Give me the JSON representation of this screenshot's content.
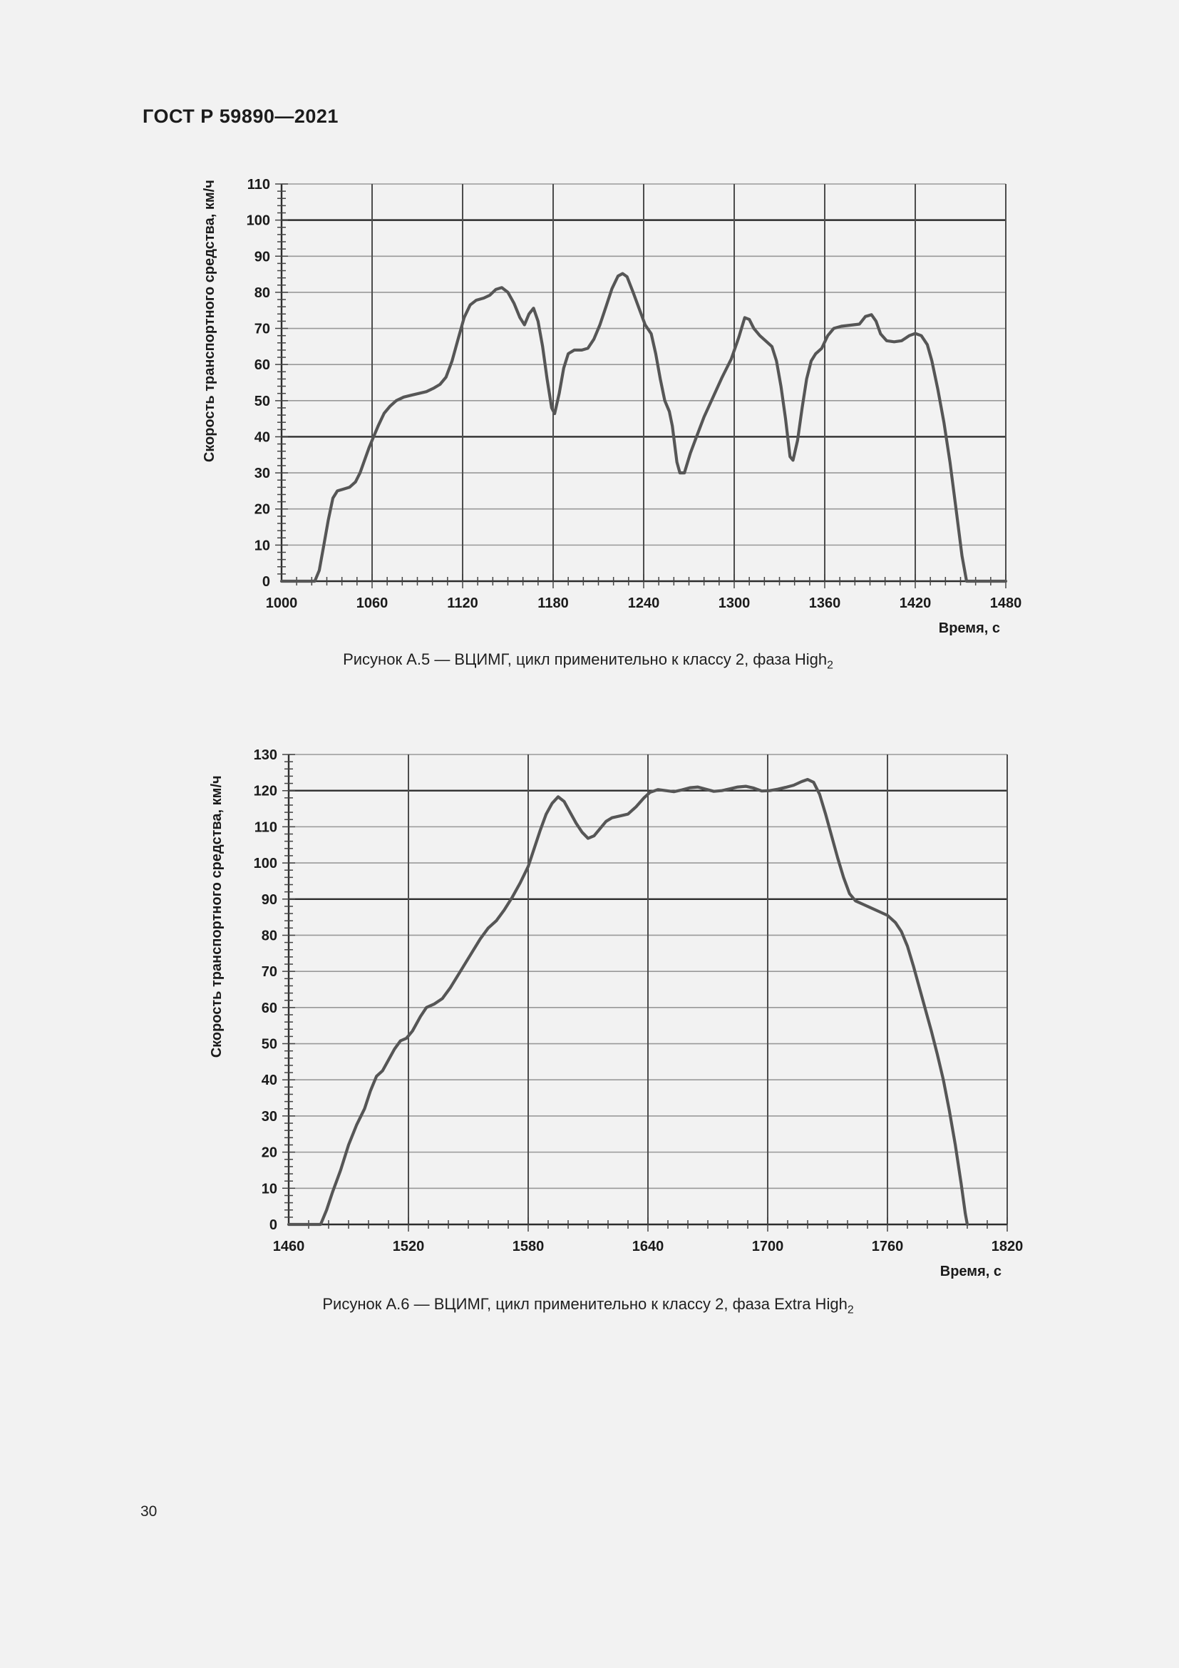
{
  "page": {
    "header": "ГОСТ Р 59890—2021",
    "page_number": "30"
  },
  "colors": {
    "background": "#f2f2f2",
    "text": "#1c1c1c",
    "grid_light": "#999999",
    "grid_dark": "#2d2d2d",
    "grid_vertical": "#4c4c4c",
    "axis": "#2d2d2d",
    "curve": "#565656"
  },
  "chart_data": [
    {
      "type": "line",
      "figure": "А.5",
      "caption": "Рисунок А.5 — ВЦИМГ, цикл применительно к классу 2, фаза High",
      "caption_subscript": "2",
      "xlabel": "Время, с",
      "ylabel": "Скорость транспортного средства, км/ч",
      "xlim": [
        1000,
        1480
      ],
      "ylim": [
        0,
        110
      ],
      "x_tick_step": 60,
      "y_tick_step": 10,
      "x_minor_step": 10,
      "y_minor_step": 2,
      "grid": true,
      "legend": false,
      "dark_y_gridlines": [
        40,
        100
      ],
      "line_color": "#565656",
      "points": [
        [
          1000,
          0
        ],
        [
          1022,
          0
        ],
        [
          1025,
          3
        ],
        [
          1028,
          10
        ],
        [
          1031,
          17
        ],
        [
          1034,
          23
        ],
        [
          1037,
          25
        ],
        [
          1041,
          25.5
        ],
        [
          1045,
          26
        ],
        [
          1049,
          27.5
        ],
        [
          1052,
          30
        ],
        [
          1055,
          33.5
        ],
        [
          1058,
          37
        ],
        [
          1061,
          40
        ],
        [
          1064,
          43
        ],
        [
          1068,
          46.5
        ],
        [
          1072,
          48.5
        ],
        [
          1076,
          50
        ],
        [
          1081,
          51
        ],
        [
          1086,
          51.5
        ],
        [
          1091,
          52
        ],
        [
          1096,
          52.5
        ],
        [
          1101,
          53.5
        ],
        [
          1105,
          54.5
        ],
        [
          1109,
          56.5
        ],
        [
          1113,
          61
        ],
        [
          1117,
          67
        ],
        [
          1121,
          73
        ],
        [
          1125,
          76.5
        ],
        [
          1129,
          77.8
        ],
        [
          1134,
          78.4
        ],
        [
          1138,
          79.2
        ],
        [
          1142,
          80.8
        ],
        [
          1146,
          81.3
        ],
        [
          1150,
          80
        ],
        [
          1154,
          77
        ],
        [
          1158,
          73
        ],
        [
          1161,
          71
        ],
        [
          1164,
          74
        ],
        [
          1167,
          75.6
        ],
        [
          1170,
          72
        ],
        [
          1173,
          65
        ],
        [
          1176,
          56
        ],
        [
          1179,
          48
        ],
        [
          1181,
          46.4
        ],
        [
          1184,
          52
        ],
        [
          1187,
          59
        ],
        [
          1190,
          63
        ],
        [
          1194,
          64
        ],
        [
          1199,
          64
        ],
        [
          1203,
          64.5
        ],
        [
          1207,
          67
        ],
        [
          1211,
          71
        ],
        [
          1215,
          76
        ],
        [
          1219,
          81
        ],
        [
          1223,
          84.5
        ],
        [
          1226,
          85.2
        ],
        [
          1229,
          84.3
        ],
        [
          1233,
          80
        ],
        [
          1237,
          75.5
        ],
        [
          1241,
          71
        ],
        [
          1245,
          68.5
        ],
        [
          1248,
          63
        ],
        [
          1251,
          56
        ],
        [
          1254,
          50
        ],
        [
          1257,
          47
        ],
        [
          1259,
          43
        ],
        [
          1262,
          33
        ],
        [
          1264,
          30
        ],
        [
          1267,
          30
        ],
        [
          1271,
          35.5
        ],
        [
          1275,
          40
        ],
        [
          1280,
          45.5
        ],
        [
          1286,
          51
        ],
        [
          1292,
          56.5
        ],
        [
          1298,
          61.5
        ],
        [
          1303,
          67.5
        ],
        [
          1307,
          73
        ],
        [
          1310,
          72.5
        ],
        [
          1313,
          70
        ],
        [
          1317,
          68
        ],
        [
          1321,
          66.5
        ],
        [
          1325,
          65
        ],
        [
          1328,
          61
        ],
        [
          1331,
          54
        ],
        [
          1334,
          45
        ],
        [
          1337,
          34.5
        ],
        [
          1339,
          33.5
        ],
        [
          1342,
          39
        ],
        [
          1345,
          48
        ],
        [
          1348,
          56
        ],
        [
          1351,
          61
        ],
        [
          1354,
          63
        ],
        [
          1358,
          64.5
        ],
        [
          1362,
          68
        ],
        [
          1366,
          70
        ],
        [
          1371,
          70.6
        ],
        [
          1377,
          70.9
        ],
        [
          1383,
          71.2
        ],
        [
          1387,
          73.3
        ],
        [
          1391,
          73.8
        ],
        [
          1394,
          72
        ],
        [
          1397,
          68.5
        ],
        [
          1401,
          66.6
        ],
        [
          1406,
          66.3
        ],
        [
          1411,
          66.6
        ],
        [
          1416,
          68
        ],
        [
          1420,
          68.6
        ],
        [
          1424,
          68
        ],
        [
          1428,
          65.5
        ],
        [
          1431,
          61
        ],
        [
          1435,
          53
        ],
        [
          1439,
          44
        ],
        [
          1443,
          33
        ],
        [
          1447,
          20
        ],
        [
          1451,
          7
        ],
        [
          1454,
          0
        ],
        [
          1480,
          0
        ]
      ]
    },
    {
      "type": "line",
      "figure": "А.6",
      "caption": "Рисунок А.6 — ВЦИМГ, цикл применительно к классу 2, фаза Extra High",
      "caption_subscript": "2",
      "xlabel": "Время, с",
      "ylabel": "Скорость транспортного средства, км/ч",
      "xlim": [
        1460,
        1820
      ],
      "ylim": [
        0,
        130
      ],
      "x_tick_step": 60,
      "y_tick_step": 10,
      "x_minor_step": 10,
      "y_minor_step": 2,
      "grid": true,
      "legend": false,
      "dark_y_gridlines": [
        90,
        120
      ],
      "line_color": "#565656",
      "points": [
        [
          1460,
          0
        ],
        [
          1476,
          0
        ],
        [
          1479,
          4
        ],
        [
          1482,
          9
        ],
        [
          1486,
          15
        ],
        [
          1490,
          22
        ],
        [
          1494,
          27.5
        ],
        [
          1498,
          32
        ],
        [
          1501,
          37
        ],
        [
          1504,
          41
        ],
        [
          1507,
          42.5
        ],
        [
          1510,
          45.5
        ],
        [
          1513,
          48.5
        ],
        [
          1516,
          50.8
        ],
        [
          1519,
          51.5
        ],
        [
          1522,
          53.5
        ],
        [
          1526,
          57.5
        ],
        [
          1529,
          60
        ],
        [
          1533,
          61
        ],
        [
          1537,
          62.5
        ],
        [
          1541,
          65.5
        ],
        [
          1546,
          70
        ],
        [
          1551,
          74.5
        ],
        [
          1556,
          79
        ],
        [
          1560,
          82
        ],
        [
          1564,
          84
        ],
        [
          1568,
          87
        ],
        [
          1572,
          90.5
        ],
        [
          1576,
          94.5
        ],
        [
          1580,
          99
        ],
        [
          1583,
          104
        ],
        [
          1586,
          109
        ],
        [
          1589,
          113.5
        ],
        [
          1592,
          116.5
        ],
        [
          1595,
          118.3
        ],
        [
          1598,
          117
        ],
        [
          1601,
          114
        ],
        [
          1604,
          111
        ],
        [
          1607,
          108.5
        ],
        [
          1610,
          106.8
        ],
        [
          1613,
          107.5
        ],
        [
          1616,
          109.5
        ],
        [
          1619,
          111.5
        ],
        [
          1622,
          112.5
        ],
        [
          1626,
          113
        ],
        [
          1630,
          113.5
        ],
        [
          1634,
          115.5
        ],
        [
          1638,
          118
        ],
        [
          1641,
          119.5
        ],
        [
          1645,
          120.3
        ],
        [
          1649,
          120
        ],
        [
          1653,
          119.7
        ],
        [
          1657,
          120.2
        ],
        [
          1661,
          120.8
        ],
        [
          1665,
          121
        ],
        [
          1669,
          120.4
        ],
        [
          1673,
          119.8
        ],
        [
          1677,
          120
        ],
        [
          1681,
          120.5
        ],
        [
          1685,
          121
        ],
        [
          1689,
          121.2
        ],
        [
          1693,
          120.7
        ],
        [
          1697,
          119.9
        ],
        [
          1701,
          120
        ],
        [
          1705,
          120.4
        ],
        [
          1709,
          120.9
        ],
        [
          1713,
          121.5
        ],
        [
          1717,
          122.5
        ],
        [
          1720,
          123.1
        ],
        [
          1723,
          122.3
        ],
        [
          1726,
          119
        ],
        [
          1729,
          113.5
        ],
        [
          1732,
          107.5
        ],
        [
          1735,
          101.5
        ],
        [
          1738,
          96
        ],
        [
          1741,
          91.5
        ],
        [
          1744,
          89.5
        ],
        [
          1748,
          88.5
        ],
        [
          1752,
          87.5
        ],
        [
          1756,
          86.5
        ],
        [
          1760,
          85.5
        ],
        [
          1764,
          83.5
        ],
        [
          1767,
          81
        ],
        [
          1770,
          77
        ],
        [
          1773,
          71.5
        ],
        [
          1776,
          65.5
        ],
        [
          1779,
          59.5
        ],
        [
          1782,
          53.5
        ],
        [
          1785,
          47
        ],
        [
          1788,
          40
        ],
        [
          1791,
          31.5
        ],
        [
          1794,
          22
        ],
        [
          1797,
          11
        ],
        [
          1799,
          3
        ],
        [
          1800,
          0
        ]
      ]
    }
  ]
}
